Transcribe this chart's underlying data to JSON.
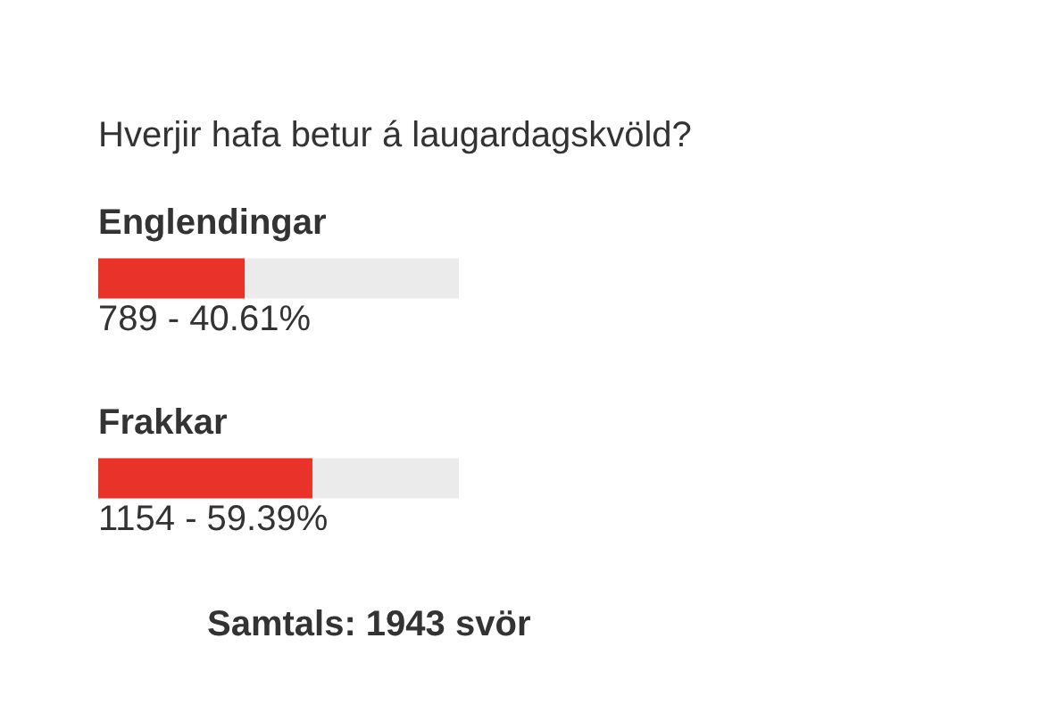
{
  "chart_data": {
    "type": "bar",
    "orientation": "horizontal",
    "title": "Hverjir hafa betur á laugardagskvöld?",
    "categories": [
      "Englendingar",
      "Frakkar"
    ],
    "values": [
      789,
      1154
    ],
    "value_labels": [
      "789 - 40.61%",
      "1154 - 59.39%"
    ],
    "color": "#e8322a",
    "xlim": [
      0,
      1943
    ],
    "tick_labels": false,
    "annotations": [
      "Samtals: 1943 svör"
    ]
  }
}
